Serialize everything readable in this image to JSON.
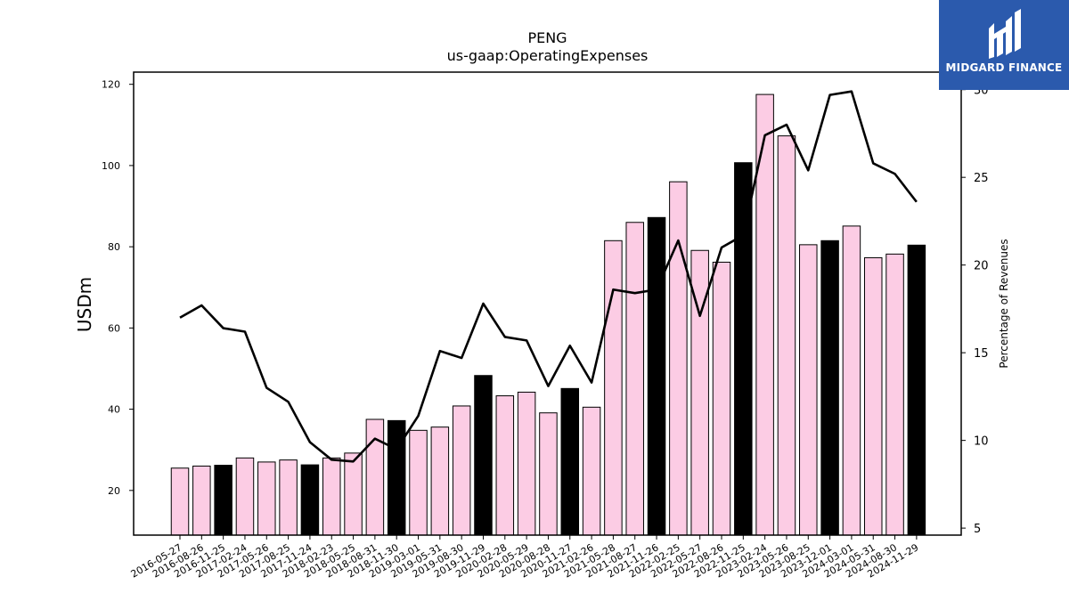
{
  "brand": {
    "name": "MIDGARD FINANCE",
    "logo_icon": "midgard-logo-icon",
    "background": "#2b5aad"
  },
  "chart_data": {
    "type": "bar",
    "title": "PENG",
    "subtitle": "us-gaap:OperatingExpenses",
    "ylabel": "USDm",
    "y2label": "Percentage of Revenues",
    "ylim": [
      9,
      123
    ],
    "y2lim": [
      4.6,
      31.0
    ],
    "yticks": [
      20,
      40,
      60,
      80,
      100,
      120
    ],
    "y2ticks": [
      5,
      10,
      15,
      20,
      25,
      30
    ],
    "categories": [
      "2016-05-27",
      "2016-08-26",
      "2016-11-25",
      "2017-02-24",
      "2017-05-26",
      "2017-08-25",
      "2017-11-24",
      "2018-02-23",
      "2018-05-25",
      "2018-08-31",
      "2018-11-30",
      "2019-03-01",
      "2019-05-31",
      "2019-08-30",
      "2019-11-29",
      "2020-02-28",
      "2020-05-29",
      "2020-08-28",
      "2020-11-27",
      "2021-02-26",
      "2021-05-28",
      "2021-08-27",
      "2021-11-26",
      "2022-02-25",
      "2022-05-27",
      "2022-08-26",
      "2022-11-25",
      "2023-02-24",
      "2023-05-26",
      "2023-08-25",
      "2023-12-01",
      "2024-03-01",
      "2024-05-31",
      "2024-08-30",
      "2024-11-29"
    ],
    "series": [
      {
        "kind": "bar",
        "values": [
          25.5,
          26.0,
          26.2,
          28.0,
          27.0,
          27.5,
          26.3,
          28.0,
          29.2,
          37.5,
          37.2,
          34.8,
          35.6,
          40.8,
          48.3,
          43.3,
          44.2,
          39.1,
          45.1,
          40.5,
          81.5,
          86.0,
          87.2,
          96.0,
          79.1,
          76.2,
          100.7,
          117.5,
          107.3,
          80.5,
          81.5,
          85.1,
          77.3,
          78.2,
          80.4
        ],
        "highlight": [
          false,
          false,
          true,
          false,
          false,
          false,
          true,
          false,
          false,
          false,
          true,
          false,
          false,
          false,
          true,
          false,
          false,
          false,
          true,
          false,
          false,
          false,
          true,
          false,
          false,
          false,
          true,
          false,
          false,
          false,
          true,
          false,
          false,
          false,
          true
        ],
        "color": "#fccce4",
        "highlight_color": "#000000"
      },
      {
        "kind": "line",
        "axis": "right",
        "values": [
          17.0,
          17.7,
          16.4,
          16.2,
          13.0,
          12.2,
          9.9,
          8.9,
          8.8,
          10.1,
          9.5,
          11.4,
          15.1,
          14.7,
          17.8,
          15.9,
          15.7,
          13.1,
          15.4,
          13.3,
          18.6,
          18.4,
          18.6,
          21.4,
          17.1,
          21.0,
          21.7,
          27.4,
          28.0,
          25.4,
          29.7,
          29.9,
          25.8,
          25.2,
          23.6
        ],
        "color": "#000000"
      }
    ],
    "grid": false,
    "legend": "none"
  }
}
